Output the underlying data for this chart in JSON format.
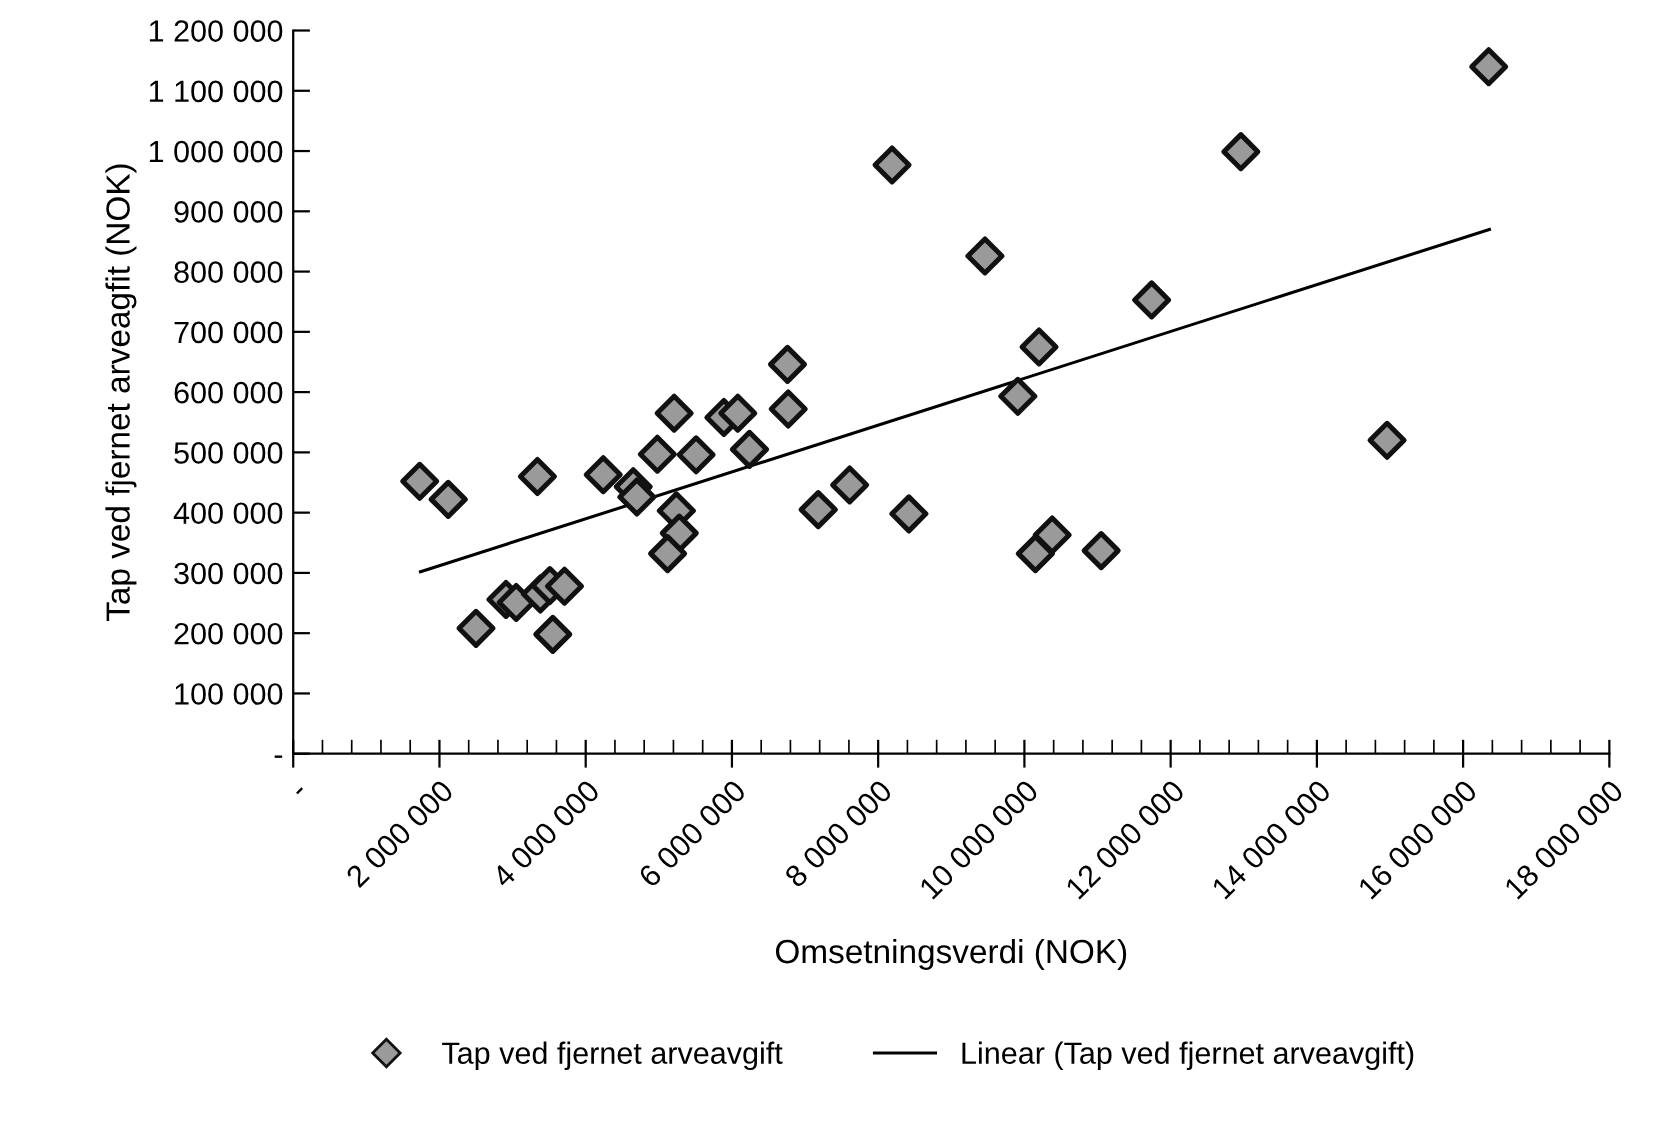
{
  "chart_data": {
    "type": "scatter",
    "xlabel": "Omsetningsverdi (NOK)",
    "ylabel": "Tap ved fjernet arveagfit (NOK)",
    "xlim": [
      0,
      18000000
    ],
    "ylim": [
      0,
      1200000
    ],
    "xticks": [
      {
        "value": 0,
        "label": "-"
      },
      {
        "value": 400000,
        "label": null
      },
      {
        "value": 800000,
        "label": null
      },
      {
        "value": 1200000,
        "label": null
      },
      {
        "value": 1600000,
        "label": null
      },
      {
        "value": 2000000,
        "label": "2 000 000"
      },
      {
        "value": 2400000,
        "label": null
      },
      {
        "value": 2800000,
        "label": null
      },
      {
        "value": 3200000,
        "label": null
      },
      {
        "value": 3600000,
        "label": null
      },
      {
        "value": 4000000,
        "label": "4 000 000"
      },
      {
        "value": 4400000,
        "label": null
      },
      {
        "value": 4800000,
        "label": null
      },
      {
        "value": 5200000,
        "label": null
      },
      {
        "value": 5600000,
        "label": null
      },
      {
        "value": 6000000,
        "label": "6 000 000"
      },
      {
        "value": 6400000,
        "label": null
      },
      {
        "value": 6800000,
        "label": null
      },
      {
        "value": 7200000,
        "label": null
      },
      {
        "value": 7600000,
        "label": null
      },
      {
        "value": 8000000,
        "label": "8 000 000"
      },
      {
        "value": 8400000,
        "label": null
      },
      {
        "value": 8800000,
        "label": null
      },
      {
        "value": 9200000,
        "label": null
      },
      {
        "value": 9600000,
        "label": null
      },
      {
        "value": 10000000,
        "label": "10 000 000"
      },
      {
        "value": 10400000,
        "label": null
      },
      {
        "value": 10800000,
        "label": null
      },
      {
        "value": 11200000,
        "label": null
      },
      {
        "value": 11600000,
        "label": null
      },
      {
        "value": 12000000,
        "label": "12 000 000"
      },
      {
        "value": 12400000,
        "label": null
      },
      {
        "value": 12800000,
        "label": null
      },
      {
        "value": 13200000,
        "label": null
      },
      {
        "value": 13600000,
        "label": null
      },
      {
        "value": 14000000,
        "label": "14 000 000"
      },
      {
        "value": 14400000,
        "label": null
      },
      {
        "value": 14800000,
        "label": null
      },
      {
        "value": 15200000,
        "label": null
      },
      {
        "value": 15600000,
        "label": null
      },
      {
        "value": 16000000,
        "label": "16 000 000"
      },
      {
        "value": 16400000,
        "label": null
      },
      {
        "value": 16800000,
        "label": null
      },
      {
        "value": 17200000,
        "label": null
      },
      {
        "value": 17600000,
        "label": null
      },
      {
        "value": 18000000,
        "label": "18 000 000"
      }
    ],
    "yticks": [
      {
        "value": 0,
        "label": "-"
      },
      {
        "value": 100000,
        "label": "100 000"
      },
      {
        "value": 200000,
        "label": "200 000"
      },
      {
        "value": 300000,
        "label": "300 000"
      },
      {
        "value": 400000,
        "label": "400 000"
      },
      {
        "value": 500000,
        "label": "500 000"
      },
      {
        "value": 600000,
        "label": "600 000"
      },
      {
        "value": 700000,
        "label": "700 000"
      },
      {
        "value": 800000,
        "label": "800 000"
      },
      {
        "value": 900000,
        "label": "900 000"
      },
      {
        "value": 1000000,
        "label": "1 000 000"
      },
      {
        "value": 1100000,
        "label": "1 100 000"
      },
      {
        "value": 1200000,
        "label": "1 200 000"
      }
    ],
    "grid": false,
    "legend": "bottom",
    "series": [
      {
        "name": "Tap ved fjernet arveavgift",
        "marker": "diamond",
        "color": "#9a9a9a",
        "x": [
          1730000,
          2120000,
          3340000,
          2500000,
          2910000,
          3050000,
          3380000,
          3510000,
          3710000,
          3550000,
          4240000,
          4650000,
          4700000,
          4980000,
          5210000,
          5240000,
          5280000,
          5120000,
          5510000,
          5890000,
          6080000,
          6240000,
          6760000,
          6770000,
          7180000,
          7610000,
          8420000,
          8190000,
          9460000,
          11740000,
          10200000,
          9910000,
          10380000,
          10150000,
          11050000,
          12960000,
          16350000,
          14960000
        ],
        "values": [
          452000,
          422000,
          460000,
          208000,
          256000,
          251000,
          265000,
          279000,
          278000,
          198000,
          463000,
          443000,
          426000,
          497000,
          565000,
          403000,
          366000,
          332000,
          496000,
          558000,
          565000,
          505000,
          646000,
          572000,
          405000,
          446000,
          398000,
          977000,
          826000,
          753000,
          675000,
          593000,
          363000,
          332000,
          337000,
          999000,
          1140000,
          520000
        ]
      },
      {
        "name": "Linear (Tap ved fjernet arveavgift)",
        "type": "line",
        "marker": "none",
        "line_style": "solid",
        "color": "#000000",
        "x": [
          1740000,
          16360000
        ],
        "values": [
          302000,
          870000
        ]
      }
    ]
  }
}
